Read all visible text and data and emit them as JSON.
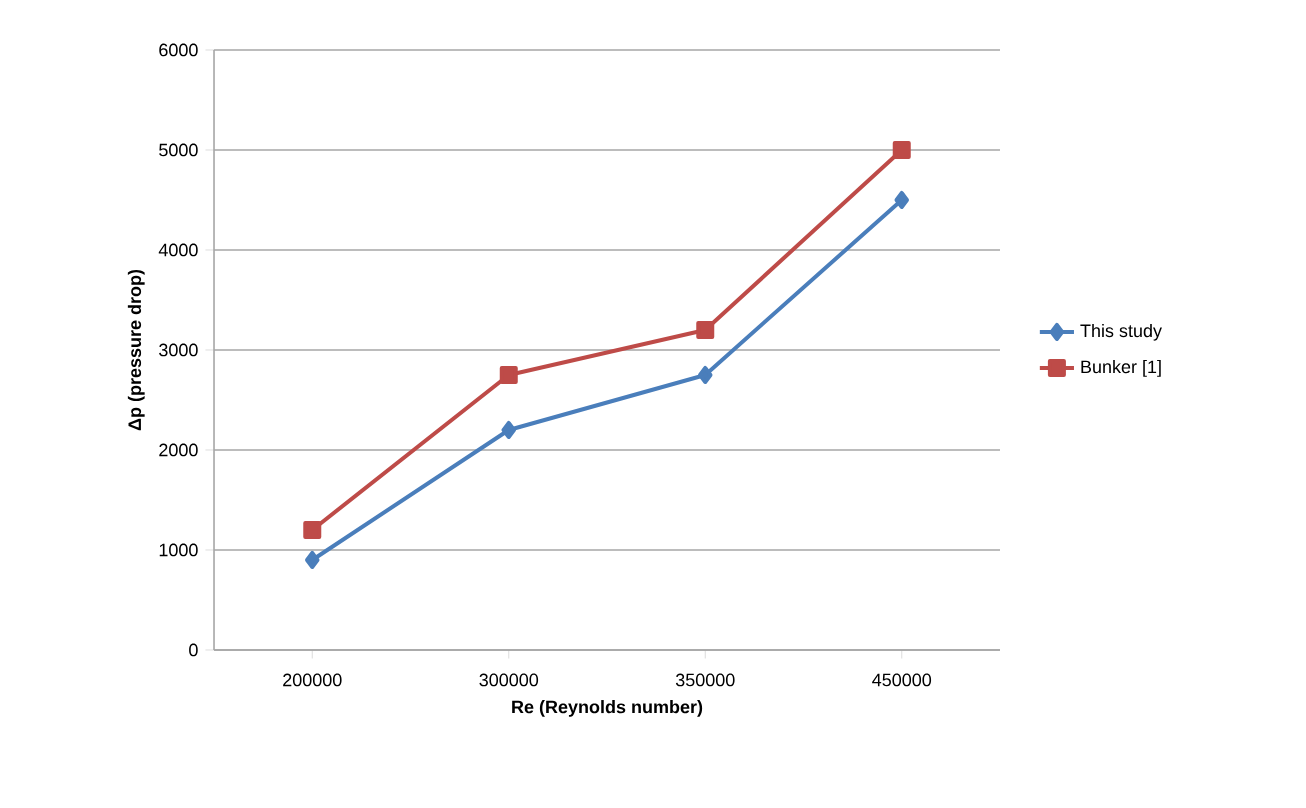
{
  "chart_data": {
    "type": "line",
    "xlabel": "Re  (Reynolds number)",
    "ylabel": "Δp  (pressure drop)",
    "categories": [
      "200000",
      "300000",
      "350000",
      "450000"
    ],
    "series": [
      {
        "name": "This study",
        "color": "#4a7ebb",
        "marker": "diamond",
        "values": [
          900,
          2200,
          2750,
          4500
        ]
      },
      {
        "name": "Bunker [1]",
        "color": "#be4b48",
        "marker": "square",
        "values": [
          1200,
          2750,
          3200,
          5000
        ]
      }
    ],
    "ylim": [
      0,
      6000
    ],
    "yticks": [
      0,
      1000,
      2000,
      3000,
      4000,
      5000,
      6000
    ],
    "grid": "y",
    "legend": "right",
    "line_style": "solid"
  }
}
